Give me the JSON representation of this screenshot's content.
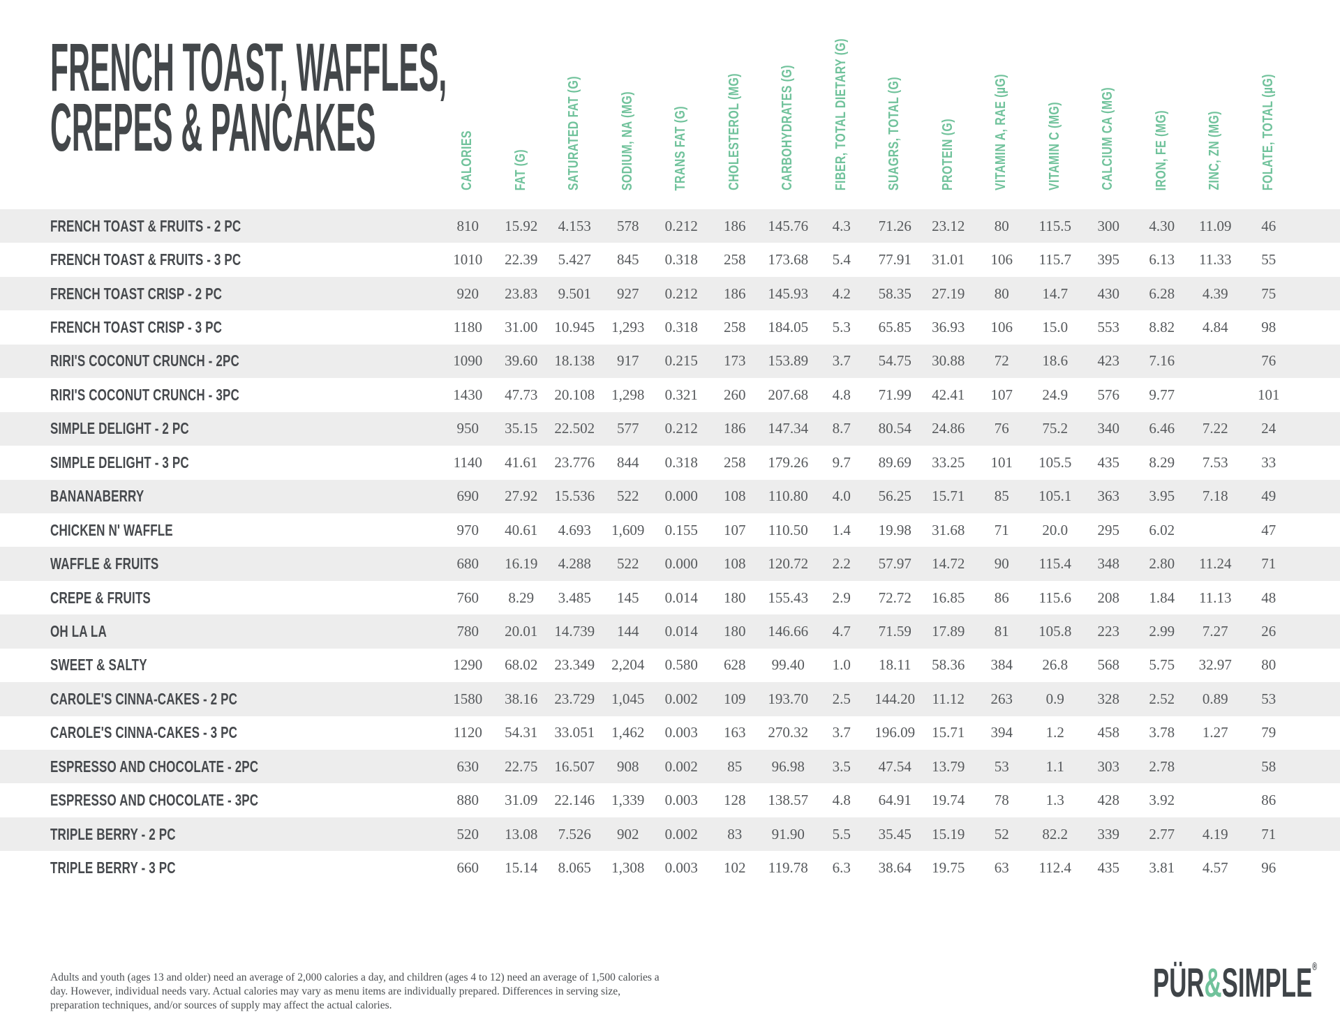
{
  "title": {
    "line1": "FRENCH TOAST, WAFFLES,",
    "line2": "CREPES & PANCAKES"
  },
  "table": {
    "columns": [
      "CALORIES",
      "FAT (G)",
      "SATURATED FAT (G)",
      "SODIUM, NA (MG)",
      "TRANS FAT (G)",
      "CHOLESTEROL (MG)",
      "CARBOHYDRATES (G)",
      "FIBER, TOTAL DIETARY (G)",
      "SUAGRS, TOTAL (G)",
      "PROTEIN (G)",
      "VITAMIN A, RAE (µG)",
      "VITAMIN C (MG)",
      "CALCIUM CA (MG)",
      "IRON, FE (MG)",
      "ZINC, ZN (MG)",
      "FOLATE, TOTAL (µG)"
    ],
    "rows": [
      {
        "name": "FRENCH TOAST & FRUITS - 2 PC",
        "values": [
          "810",
          "15.92",
          "4.153",
          "578",
          "0.212",
          "186",
          "145.76",
          "4.3",
          "71.26",
          "23.12",
          "80",
          "115.5",
          "300",
          "4.30",
          "11.09",
          "46"
        ]
      },
      {
        "name": "FRENCH TOAST & FRUITS - 3 PC",
        "values": [
          "1010",
          "22.39",
          "5.427",
          "845",
          "0.318",
          "258",
          "173.68",
          "5.4",
          "77.91",
          "31.01",
          "106",
          "115.7",
          "395",
          "6.13",
          "11.33",
          "55"
        ]
      },
      {
        "name": "FRENCH TOAST CRISP - 2 PC",
        "values": [
          "920",
          "23.83",
          "9.501",
          "927",
          "0.212",
          "186",
          "145.93",
          "4.2",
          "58.35",
          "27.19",
          "80",
          "14.7",
          "430",
          "6.28",
          "4.39",
          "75"
        ]
      },
      {
        "name": "FRENCH TOAST CRISP - 3 PC",
        "values": [
          "1180",
          "31.00",
          "10.945",
          "1,293",
          "0.318",
          "258",
          "184.05",
          "5.3",
          "65.85",
          "36.93",
          "106",
          "15.0",
          "553",
          "8.82",
          "4.84",
          "98"
        ]
      },
      {
        "name": "RIRI'S COCONUT CRUNCH - 2PC",
        "values": [
          "1090",
          "39.60",
          "18.138",
          "917",
          "0.215",
          "173",
          "153.89",
          "3.7",
          "54.75",
          "30.88",
          "72",
          "18.6",
          "423",
          "7.16",
          "",
          "76"
        ]
      },
      {
        "name": "RIRI'S COCONUT CRUNCH - 3PC",
        "values": [
          "1430",
          "47.73",
          "20.108",
          "1,298",
          "0.321",
          "260",
          "207.68",
          "4.8",
          "71.99",
          "42.41",
          "107",
          "24.9",
          "576",
          "9.77",
          "",
          "101"
        ]
      },
      {
        "name": "SIMPLE DELIGHT - 2 PC",
        "values": [
          "950",
          "35.15",
          "22.502",
          "577",
          "0.212",
          "186",
          "147.34",
          "8.7",
          "80.54",
          "24.86",
          "76",
          "75.2",
          "340",
          "6.46",
          "7.22",
          "24"
        ]
      },
      {
        "name": "SIMPLE DELIGHT - 3 PC",
        "values": [
          "1140",
          "41.61",
          "23.776",
          "844",
          "0.318",
          "258",
          "179.26",
          "9.7",
          "89.69",
          "33.25",
          "101",
          "105.5",
          "435",
          "8.29",
          "7.53",
          "33"
        ]
      },
      {
        "name": "BANANABERRY",
        "values": [
          "690",
          "27.92",
          "15.536",
          "522",
          "0.000",
          "108",
          "110.80",
          "4.0",
          "56.25",
          "15.71",
          "85",
          "105.1",
          "363",
          "3.95",
          "7.18",
          "49"
        ]
      },
      {
        "name": "CHICKEN N' WAFFLE",
        "values": [
          "970",
          "40.61",
          "4.693",
          "1,609",
          "0.155",
          "107",
          "110.50",
          "1.4",
          "19.98",
          "31.68",
          "71",
          "20.0",
          "295",
          "6.02",
          "",
          "47"
        ]
      },
      {
        "name": "WAFFLE & FRUITS",
        "values": [
          "680",
          "16.19",
          "4.288",
          "522",
          "0.000",
          "108",
          "120.72",
          "2.2",
          "57.97",
          "14.72",
          "90",
          "115.4",
          "348",
          "2.80",
          "11.24",
          "71"
        ]
      },
      {
        "name": "CREPE & FRUITS",
        "values": [
          "760",
          "8.29",
          "3.485",
          "145",
          "0.014",
          "180",
          "155.43",
          "2.9",
          "72.72",
          "16.85",
          "86",
          "115.6",
          "208",
          "1.84",
          "11.13",
          "48"
        ]
      },
      {
        "name": "OH LA LA",
        "values": [
          "780",
          "20.01",
          "14.739",
          "144",
          "0.014",
          "180",
          "146.66",
          "4.7",
          "71.59",
          "17.89",
          "81",
          "105.8",
          "223",
          "2.99",
          "7.27",
          "26"
        ]
      },
      {
        "name": "SWEET & SALTY",
        "values": [
          "1290",
          "68.02",
          "23.349",
          "2,204",
          "0.580",
          "628",
          "99.40",
          "1.0",
          "18.11",
          "58.36",
          "384",
          "26.8",
          "568",
          "5.75",
          "32.97",
          "80"
        ]
      },
      {
        "name": "CAROLE'S CINNA-CAKES - 2 PC",
        "values": [
          "1580",
          "38.16",
          "23.729",
          "1,045",
          "0.002",
          "109",
          "193.70",
          "2.5",
          "144.20",
          "11.12",
          "263",
          "0.9",
          "328",
          "2.52",
          "0.89",
          "53"
        ]
      },
      {
        "name": "CAROLE'S CINNA-CAKES - 3 PC",
        "values": [
          "1120",
          "54.31",
          "33.051",
          "1,462",
          "0.003",
          "163",
          "270.32",
          "3.7",
          "196.09",
          "15.71",
          "394",
          "1.2",
          "458",
          "3.78",
          "1.27",
          "79"
        ]
      },
      {
        "name": "ESPRESSO AND CHOCOLATE - 2PC",
        "values": [
          "630",
          "22.75",
          "16.507",
          "908",
          "0.002",
          "85",
          "96.98",
          "3.5",
          "47.54",
          "13.79",
          "53",
          "1.1",
          "303",
          "2.78",
          "",
          "58"
        ]
      },
      {
        "name": "ESPRESSO AND CHOCOLATE - 3PC",
        "values": [
          "880",
          "31.09",
          "22.146",
          "1,339",
          "0.003",
          "128",
          "138.57",
          "4.8",
          "64.91",
          "19.74",
          "78",
          "1.3",
          "428",
          "3.92",
          "",
          "86"
        ]
      },
      {
        "name": "TRIPLE BERRY - 2 PC",
        "values": [
          "520",
          "13.08",
          "7.526",
          "902",
          "0.002",
          "83",
          "91.90",
          "5.5",
          "35.45",
          "15.19",
          "52",
          "82.2",
          "339",
          "2.77",
          "4.19",
          "71"
        ]
      },
      {
        "name": "TRIPLE BERRY - 3 PC",
        "values": [
          "660",
          "15.14",
          "8.065",
          "1,308",
          "0.003",
          "102",
          "119.78",
          "6.3",
          "38.64",
          "19.75",
          "63",
          "112.4",
          "435",
          "3.81",
          "4.57",
          "96"
        ]
      }
    ]
  },
  "footer": {
    "lines": [
      "Adults and youth (ages 13 and older) need an average of 2,000 calories a day, and children (ages 4 to 12) need an average of 1,500 calories a",
      "day. However, individual needs vary. Actual calories may vary as menu items are individually prepared. Differences in serving size,",
      "preparation techniques, and/or sources of supply may affect the actual calories."
    ]
  },
  "logo": {
    "pur": "PÜR",
    "amp": "&",
    "simple": "SIMPLE",
    "reg": "®"
  },
  "colors": {
    "accent_teal": "#70c29b",
    "title_charcoal": "#43474a",
    "row_label": "#46494d",
    "value_text": "#56595c",
    "row_stripe": "#ededed",
    "footnote_text": "#4c4f52"
  }
}
